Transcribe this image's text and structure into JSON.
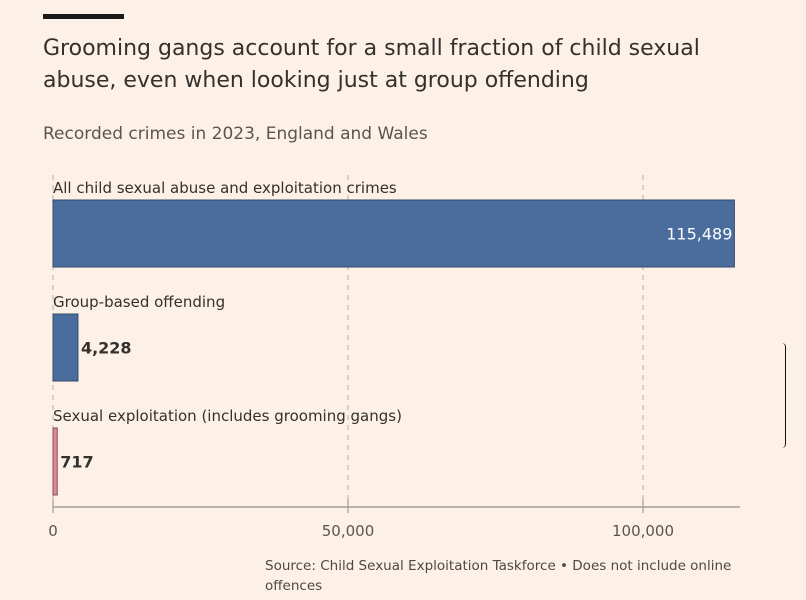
{
  "header": {
    "title": "Grooming gangs account for a small fraction of child sexual abuse, even when looking just at group offending",
    "subtitle": "Recorded crimes in 2023, England and Wales"
  },
  "chart_data": {
    "type": "bar",
    "orientation": "horizontal",
    "categories": [
      "All child sexual abuse and exploitation crimes",
      "Group-based offending",
      "Sexual exploitation (includes grooming gangs)"
    ],
    "values": [
      115489,
      4228,
      717
    ],
    "value_labels": [
      "115,489",
      "4,228",
      "717"
    ],
    "colors": [
      "#4a6d9e",
      "#4a6d9e",
      "#d98a9e"
    ],
    "xlim": [
      0,
      115489
    ],
    "x_ticks": [
      0,
      50000,
      100000
    ],
    "x_tick_labels": [
      "0",
      "50,000",
      "100,000"
    ],
    "grid": "vertical dashed",
    "title": "Grooming gangs account for a small fraction of child sexual abuse, even when looking just at group offending",
    "xlabel": "",
    "ylabel": ""
  },
  "footer": {
    "source": "Source: Child Sexual Exploitation Taskforce • Does not include online offences"
  }
}
